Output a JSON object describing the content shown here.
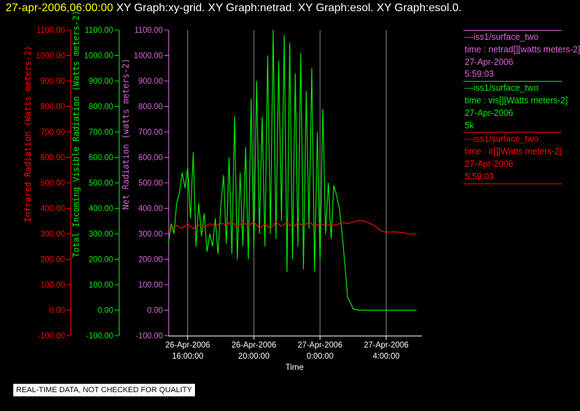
{
  "header": {
    "timestamp": "27-apr-2006,06:00:00",
    "graphs": "  XY Graph:xy-grid.  XY Graph:netrad.  XY Graph:esol.  XY Graph:esol.0."
  },
  "note": "REAL-TIME DATA, NOT CHECKED FOR QUALITY",
  "legend": [
    {
      "lines": [
        "---iss1/surface_two",
        "time : netrad[][watts meters-2]",
        "27-Apr-2006",
        "5:59:03"
      ],
      "color": "#dd66dd"
    },
    {
      "lines": [
        "---iss1/surface_two",
        "time : vis[][Watts meters-2]",
        "27-Apr-2006",
        "5k"
      ],
      "color": "#00ee00"
    },
    {
      "lines": [
        "---iss1/surface_two",
        "time : ir[][Watts meters-2]",
        "27-Apr-2006",
        "5:59:03"
      ],
      "color": "#ff0000"
    }
  ],
  "chart_data": {
    "type": "line",
    "xlabel": "Time",
    "x_range": [
      "2006-04-26T14:50",
      "2006-04-27T06:10"
    ],
    "x_ticks": [
      {
        "value": "2006-04-26T16:00",
        "label": [
          "26-Apr-2006",
          "16:00:00"
        ]
      },
      {
        "value": "2006-04-26T20:00",
        "label": [
          "26-Apr-2006",
          "20:00:00"
        ]
      },
      {
        "value": "2006-04-27T00:00",
        "label": [
          "27-Apr-2006",
          "0:00:00"
        ]
      },
      {
        "value": "2006-04-27T04:00",
        "label": [
          "27-Apr-2006",
          "4:00:00"
        ]
      }
    ],
    "grid_x": true,
    "ylim": [
      -100,
      1100
    ],
    "y_ticks": [
      -100,
      0,
      100,
      200,
      300,
      400,
      500,
      600,
      700,
      800,
      900,
      1000,
      1100
    ],
    "y_axes": [
      {
        "label": "Infrared Radiation (Watts meters-2)",
        "color": "#ff0000",
        "ticks": [
          "-100.00",
          "0.00",
          "100.00",
          "200.00",
          "300.00",
          "400.00",
          "500.00",
          "600.00",
          "700.00",
          "800.00",
          "900.00",
          "1000.00",
          "1100.00"
        ]
      },
      {
        "label": "Total Incoming Visible Radiation (Watts meters-2)",
        "color": "#00ee00",
        "ticks": [
          "-100.00",
          "0.00",
          "100.00",
          "200.00",
          "300.00",
          "400.00",
          "500.00",
          "600.00",
          "700.00",
          "800.00",
          "900.00",
          "1000.00",
          "1100.00"
        ]
      },
      {
        "label": "Net Radiation (watts meters-2)",
        "color": "#dd66dd",
        "ticks": [
          "-100.00",
          "0.00",
          "100.00",
          "200.00",
          "300.00",
          "400.00",
          "500.00",
          "600.00",
          "700.00",
          "800.00",
          "900.00",
          "1000.00",
          "1100.00"
        ]
      }
    ],
    "series": [
      {
        "name": "vis",
        "color": "#00ee00",
        "points": [
          [
            "2006-04-26T14:50",
            260
          ],
          [
            "2006-04-26T15:00",
            340
          ],
          [
            "2006-04-26T15:10",
            300
          ],
          [
            "2006-04-26T15:20",
            420
          ],
          [
            "2006-04-26T15:30",
            460
          ],
          [
            "2006-04-26T15:40",
            540
          ],
          [
            "2006-04-26T15:50",
            480
          ],
          [
            "2006-04-26T16:00",
            560
          ],
          [
            "2006-04-26T16:10",
            360
          ],
          [
            "2006-04-26T16:20",
            620
          ],
          [
            "2006-04-26T16:30",
            250
          ],
          [
            "2006-04-26T16:40",
            420
          ],
          [
            "2006-04-26T16:50",
            290
          ],
          [
            "2006-04-26T17:00",
            380
          ],
          [
            "2006-04-26T17:10",
            230
          ],
          [
            "2006-04-26T17:20",
            300
          ],
          [
            "2006-04-26T17:30",
            250
          ],
          [
            "2006-04-26T17:40",
            360
          ],
          [
            "2006-04-26T17:50",
            220
          ],
          [
            "2006-04-26T18:00",
            410
          ],
          [
            "2006-04-26T18:10",
            530
          ],
          [
            "2006-04-26T18:20",
            260
          ],
          [
            "2006-04-26T18:30",
            600
          ],
          [
            "2006-04-26T18:40",
            220
          ],
          [
            "2006-04-26T18:50",
            760
          ],
          [
            "2006-04-26T19:00",
            200
          ],
          [
            "2006-04-26T19:10",
            540
          ],
          [
            "2006-04-26T19:20",
            250
          ],
          [
            "2006-04-26T19:30",
            640
          ],
          [
            "2006-04-26T19:40",
            200
          ],
          [
            "2006-04-26T19:50",
            830
          ],
          [
            "2006-04-26T20:00",
            240
          ],
          [
            "2006-04-26T20:10",
            900
          ],
          [
            "2006-04-26T20:20",
            300
          ],
          [
            "2006-04-26T20:30",
            760
          ],
          [
            "2006-04-26T20:40",
            250
          ],
          [
            "2006-04-26T20:50",
            1000
          ],
          [
            "2006-04-26T21:00",
            300
          ],
          [
            "2006-04-26T21:10",
            1100
          ],
          [
            "2006-04-26T21:20",
            280
          ],
          [
            "2006-04-26T21:30",
            980
          ],
          [
            "2006-04-26T21:40",
            350
          ],
          [
            "2006-04-26T21:50",
            1080
          ],
          [
            "2006-04-26T22:00",
            150
          ],
          [
            "2006-04-26T22:10",
            1050
          ],
          [
            "2006-04-26T22:20",
            200
          ],
          [
            "2006-04-26T22:30",
            930
          ],
          [
            "2006-04-26T22:40",
            250
          ],
          [
            "2006-04-26T22:50",
            1010
          ],
          [
            "2006-04-26T23:00",
            160
          ],
          [
            "2006-04-26T23:10",
            860
          ],
          [
            "2006-04-26T23:20",
            320
          ],
          [
            "2006-04-26T23:30",
            950
          ],
          [
            "2006-04-26T23:40",
            150
          ],
          [
            "2006-04-26T23:50",
            700
          ],
          [
            "2006-04-27T00:00",
            200
          ],
          [
            "2006-04-27T00:10",
            790
          ],
          [
            "2006-04-27T00:20",
            300
          ],
          [
            "2006-04-27T00:30",
            500
          ],
          [
            "2006-04-27T00:40",
            280
          ],
          [
            "2006-04-27T00:50",
            490
          ],
          [
            "2006-04-27T01:00",
            450
          ],
          [
            "2006-04-27T01:10",
            400
          ],
          [
            "2006-04-27T01:20",
            300
          ],
          [
            "2006-04-27T01:30",
            180
          ],
          [
            "2006-04-27T01:40",
            50
          ],
          [
            "2006-04-27T01:50",
            30
          ],
          [
            "2006-04-27T02:00",
            5
          ],
          [
            "2006-04-27T02:20",
            0
          ],
          [
            "2006-04-27T03:00",
            0
          ],
          [
            "2006-04-27T04:00",
            0
          ],
          [
            "2006-04-27T05:00",
            0
          ],
          [
            "2006-04-27T05:50",
            0
          ]
        ]
      },
      {
        "name": "ir",
        "color": "#ff0000",
        "points": [
          [
            "2006-04-26T14:50",
            325
          ],
          [
            "2006-04-26T15:00",
            318
          ],
          [
            "2006-04-26T15:20",
            332
          ],
          [
            "2006-04-26T15:40",
            322
          ],
          [
            "2006-04-26T16:00",
            338
          ],
          [
            "2006-04-26T16:20",
            320
          ],
          [
            "2006-04-26T16:40",
            334
          ],
          [
            "2006-04-26T17:00",
            326
          ],
          [
            "2006-04-26T17:20",
            340
          ],
          [
            "2006-04-26T17:40",
            330
          ],
          [
            "2006-04-26T18:00",
            342
          ],
          [
            "2006-04-26T18:20",
            335
          ],
          [
            "2006-04-26T18:40",
            348
          ],
          [
            "2006-04-26T19:00",
            326
          ],
          [
            "2006-04-26T19:20",
            345
          ],
          [
            "2006-04-26T19:40",
            332
          ],
          [
            "2006-04-26T20:00",
            346
          ],
          [
            "2006-04-26T20:20",
            322
          ],
          [
            "2006-04-26T20:40",
            338
          ],
          [
            "2006-04-26T21:00",
            320
          ],
          [
            "2006-04-26T21:20",
            346
          ],
          [
            "2006-04-26T21:40",
            330
          ],
          [
            "2006-04-26T22:00",
            344
          ],
          [
            "2006-04-26T22:20",
            326
          ],
          [
            "2006-04-26T22:40",
            342
          ],
          [
            "2006-04-26T23:00",
            332
          ],
          [
            "2006-04-26T23:20",
            346
          ],
          [
            "2006-04-26T23:40",
            330
          ],
          [
            "2006-04-27T00:00",
            340
          ],
          [
            "2006-04-27T00:20",
            332
          ],
          [
            "2006-04-27T00:40",
            336
          ],
          [
            "2006-04-27T01:00",
            334
          ],
          [
            "2006-04-27T01:20",
            344
          ],
          [
            "2006-04-27T01:40",
            340
          ],
          [
            "2006-04-27T02:00",
            346
          ],
          [
            "2006-04-27T02:20",
            352
          ],
          [
            "2006-04-27T02:40",
            350
          ],
          [
            "2006-04-27T03:00",
            342
          ],
          [
            "2006-04-27T03:20",
            330
          ],
          [
            "2006-04-27T03:40",
            312
          ],
          [
            "2006-04-27T04:00",
            306
          ],
          [
            "2006-04-27T04:30",
            308
          ],
          [
            "2006-04-27T05:00",
            304
          ],
          [
            "2006-04-27T05:30",
            298
          ],
          [
            "2006-04-27T05:50",
            300
          ]
        ]
      }
    ]
  }
}
